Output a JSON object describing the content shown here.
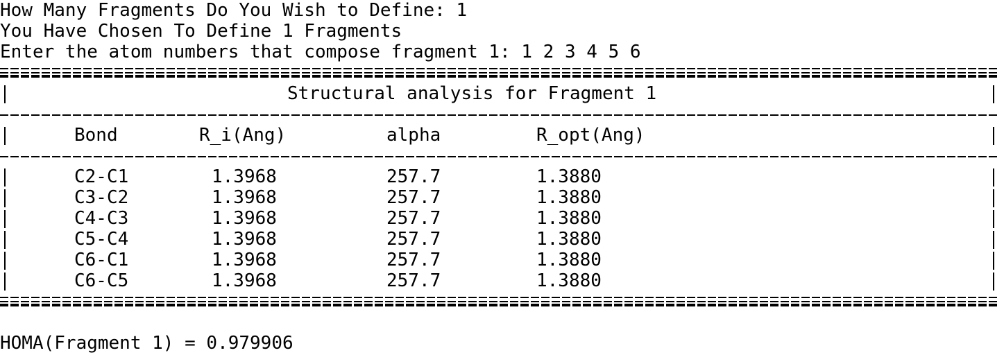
{
  "prompts": {
    "line1": "How Many Fragments Do You Wish to Define: 1",
    "line2": "You Have Chosen To Define 1 Fragments",
    "line3": "Enter the atom numbers that compose fragment 1: 1 2 3 4 5 6"
  },
  "table": {
    "title": "Structural analysis for Fragment 1",
    "headers": [
      "Bond",
      "R_i(Ang)",
      "alpha",
      "R_opt(Ang)"
    ],
    "rows": [
      [
        "C2-C1",
        "1.3968",
        "257.7",
        "1.3880"
      ],
      [
        "C3-C2",
        "1.3968",
        "257.7",
        "1.3880"
      ],
      [
        "C4-C3",
        "1.3968",
        "257.7",
        "1.3880"
      ],
      [
        "C5-C4",
        "1.3968",
        "257.7",
        "1.3880"
      ],
      [
        "C6-C1",
        "1.3968",
        "257.7",
        "1.3880"
      ],
      [
        "C6-C5",
        "1.3968",
        "257.7",
        "1.3880"
      ]
    ]
  },
  "result": "HOMA(Fragment 1) = 0.979906"
}
